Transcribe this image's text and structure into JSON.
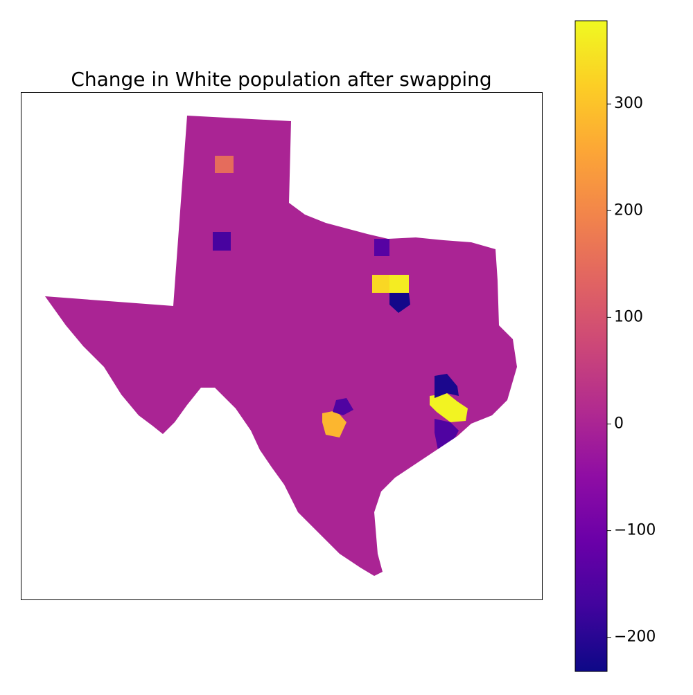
{
  "chart_data": {
    "type": "choropleth",
    "title": "Change in White population after swapping",
    "colormap": "plasma",
    "base_value": 0,
    "regions": {
      "values": [
        330,
        360,
        -225,
        370,
        -215,
        280,
        -150,
        150,
        -160,
        -140,
        -150
      ]
    },
    "colorbar": {
      "lim": [
        -232,
        378
      ],
      "ticks": [
        {
          "value": -200,
          "label": "−200"
        },
        {
          "value": -100,
          "label": "−100"
        },
        0,
        100,
        200,
        300
      ]
    }
  }
}
